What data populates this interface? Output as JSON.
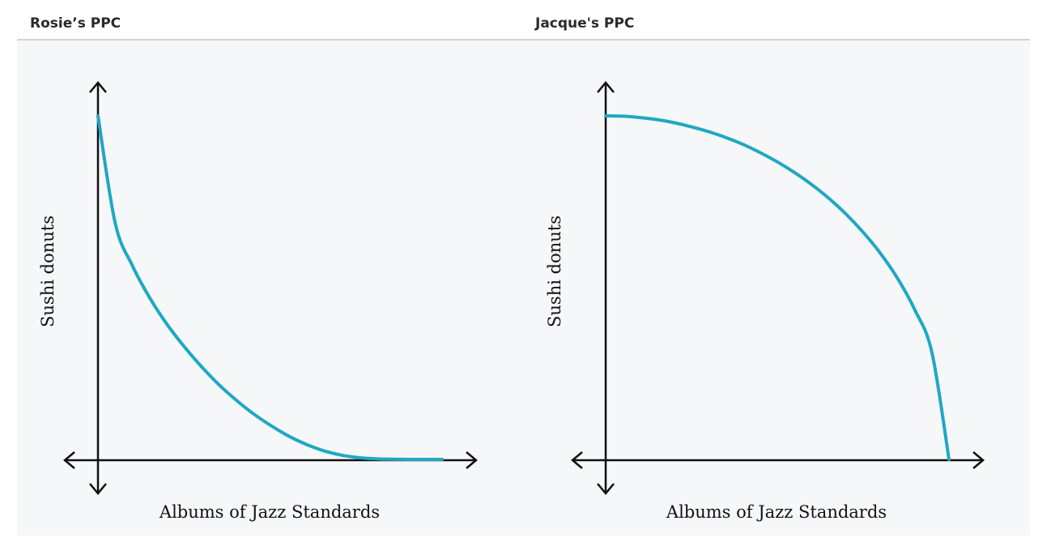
{
  "panels": [
    {
      "title": "Rosie’s PPC"
    },
    {
      "title": "Jacque's PPC"
    }
  ],
  "chart_data": [
    {
      "type": "line",
      "title": "Rosie’s PPC",
      "xlabel": "Albums of Jazz Standards",
      "ylabel": "Sushi donuts",
      "xlim": [
        0,
        1
      ],
      "ylim": [
        0,
        1
      ],
      "x_ticks": [],
      "y_ticks": [],
      "grid": false,
      "legend": "none",
      "shape": "convex",
      "series": [
        {
          "color": "#1fa8c4",
          "x": [
            0,
            0.05,
            0.1,
            0.15,
            0.2,
            0.25,
            0.3,
            0.35,
            0.4,
            0.45,
            0.5,
            0.55,
            0.6,
            0.65,
            0.7,
            0.75,
            0.8,
            0.85,
            0.9,
            0.95,
            1
          ],
          "y": [
            1,
            0.688,
            0.564,
            0.471,
            0.394,
            0.329,
            0.271,
            0.219,
            0.174,
            0.134,
            0.1,
            0.07,
            0.046,
            0.027,
            0.014,
            0.006,
            0.002,
            0.0005,
            0.0001,
            0,
            0
          ]
        }
      ]
    },
    {
      "type": "line",
      "title": "Jacque's PPC",
      "xlabel": "Albums of Jazz Standards",
      "ylabel": "Sushi donuts",
      "xlim": [
        0,
        1
      ],
      "ylim": [
        0,
        1
      ],
      "x_ticks": [],
      "y_ticks": [],
      "grid": false,
      "legend": "none",
      "shape": "concave",
      "series": [
        {
          "color": "#1fa8c4",
          "x": [
            0,
            0.05,
            0.1,
            0.15,
            0.2,
            0.25,
            0.3,
            0.35,
            0.4,
            0.45,
            0.5,
            0.55,
            0.6,
            0.65,
            0.7,
            0.75,
            0.8,
            0.85,
            0.9,
            0.95,
            1
          ],
          "y": [
            1,
            0.999,
            0.995,
            0.989,
            0.98,
            0.968,
            0.954,
            0.937,
            0.917,
            0.893,
            0.866,
            0.835,
            0.8,
            0.76,
            0.714,
            0.661,
            0.6,
            0.527,
            0.436,
            0.312,
            0
          ]
        }
      ]
    }
  ]
}
